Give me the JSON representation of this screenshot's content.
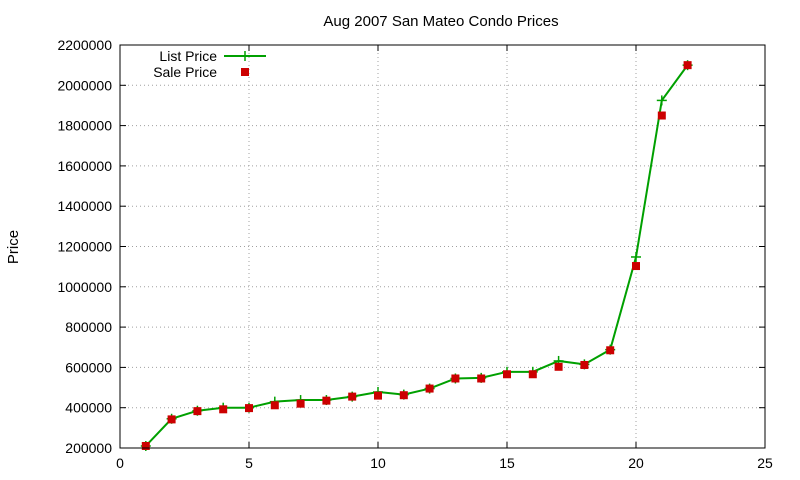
{
  "chart_data": {
    "type": "line",
    "title": "Aug 2007 San Mateo Condo Prices",
    "xlabel": "",
    "ylabel": "Price",
    "xlim": [
      0,
      25
    ],
    "ylim": [
      200000,
      2200000
    ],
    "xticks": [
      0,
      5,
      10,
      15,
      20,
      25
    ],
    "yticks": [
      200000,
      400000,
      600000,
      800000,
      1000000,
      1200000,
      1400000,
      1600000,
      1800000,
      2000000,
      2200000
    ],
    "grid": true,
    "legend_position": "top-left",
    "series": [
      {
        "name": "List Price",
        "color": "#00a000",
        "marker": "plus",
        "style": "line+points",
        "x": [
          1,
          2,
          3,
          4,
          5,
          6,
          7,
          8,
          9,
          10,
          11,
          12,
          13,
          14,
          15,
          16,
          17,
          18,
          19,
          20,
          21,
          22
        ],
        "values": [
          210000,
          345000,
          385000,
          400000,
          400000,
          430000,
          438000,
          438000,
          455000,
          478000,
          465000,
          495000,
          545000,
          548000,
          578000,
          578000,
          632000,
          615000,
          688000,
          1148000,
          1925000,
          2100000
        ]
      },
      {
        "name": "Sale Price",
        "color": "#cc0000",
        "marker": "square",
        "style": "points",
        "x": [
          1,
          2,
          3,
          4,
          5,
          6,
          7,
          8,
          9,
          10,
          11,
          12,
          13,
          14,
          15,
          16,
          17,
          18,
          19,
          20,
          21,
          22
        ],
        "values": [
          210000,
          342000,
          383000,
          392000,
          398000,
          412000,
          420000,
          435000,
          455000,
          460000,
          462000,
          495000,
          545000,
          545000,
          566000,
          566000,
          603000,
          612000,
          685000,
          1103000,
          1850000,
          2100000
        ]
      }
    ]
  }
}
